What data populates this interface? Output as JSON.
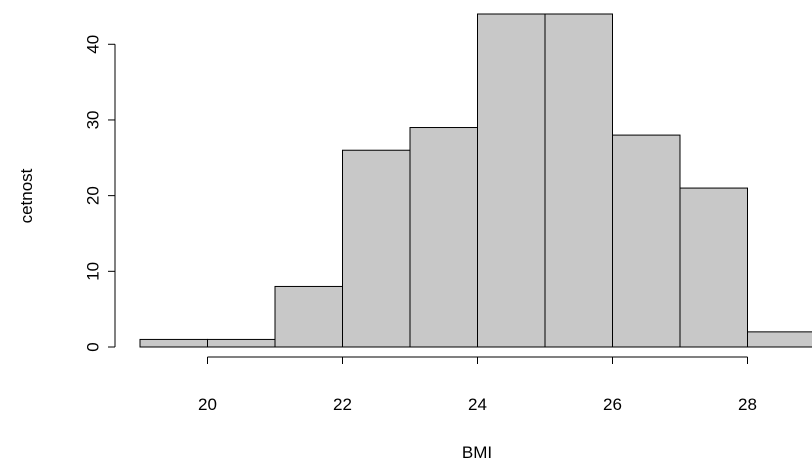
{
  "chart_data": {
    "type": "bar",
    "bins": [
      {
        "from": 19,
        "to": 20,
        "count": 1
      },
      {
        "from": 20,
        "to": 21,
        "count": 1
      },
      {
        "from": 21,
        "to": 22,
        "count": 8
      },
      {
        "from": 22,
        "to": 23,
        "count": 26
      },
      {
        "from": 23,
        "to": 24,
        "count": 29
      },
      {
        "from": 24,
        "to": 25,
        "count": 44
      },
      {
        "from": 25,
        "to": 26,
        "count": 44
      },
      {
        "from": 26,
        "to": 27,
        "count": 28
      },
      {
        "from": 27,
        "to": 28,
        "count": 21
      },
      {
        "from": 28,
        "to": 29,
        "count": 2
      }
    ],
    "xlabel": "BMI",
    "ylabel": "cetnost",
    "xlim": [
      19,
      29
    ],
    "ylim": [
      0,
      44
    ],
    "x_ticks": [
      20,
      22,
      24,
      26,
      28
    ],
    "y_ticks": [
      0,
      10,
      20,
      30,
      40
    ],
    "x_axis_span": [
      20,
      28
    ],
    "y_axis_span": [
      0,
      40
    ],
    "bar_color": "#c8c8c8",
    "grid": false,
    "legend": "none"
  }
}
